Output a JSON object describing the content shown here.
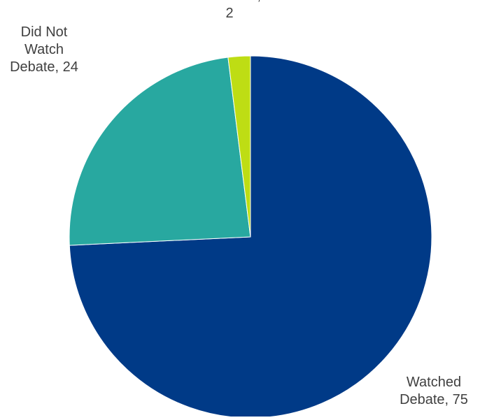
{
  "chart_data": {
    "type": "pie",
    "title": "",
    "slices": [
      {
        "label": "Watched Debate",
        "value": 75,
        "color": "#003a87",
        "label_lines": [
          "Watched",
          "Debate, 75"
        ]
      },
      {
        "label": "Did Not Watch Debate",
        "value": 24,
        "color": "#28a8a0",
        "label_lines": [
          "Did Not",
          "Watch",
          "Debate, 24"
        ]
      },
      {
        "label": "DNK/Ref.",
        "value": 2,
        "color": "#bedd14",
        "label_lines": [
          "DNK/Ref.,",
          "2"
        ]
      }
    ],
    "start_angle": "12 o'clock",
    "direction": "clockwise",
    "legend": "none"
  }
}
